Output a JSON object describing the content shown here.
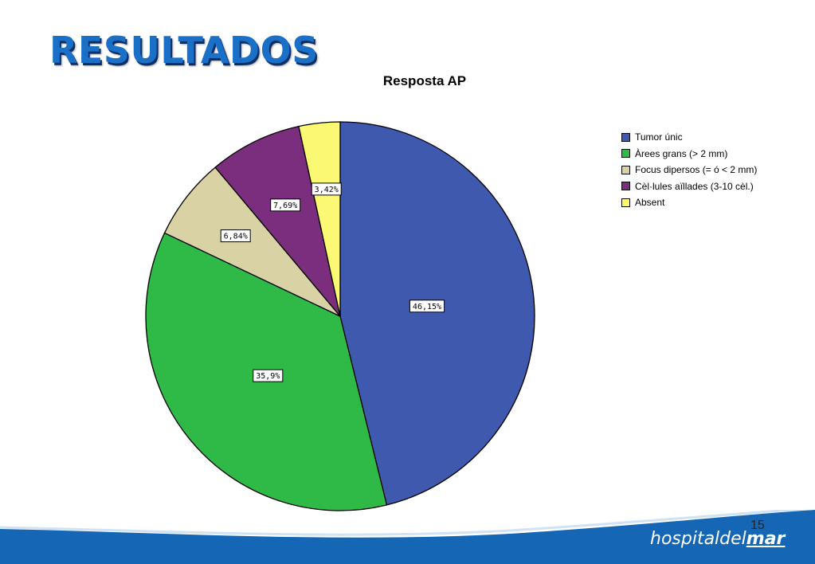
{
  "slide": {
    "title": "RESULTADOS",
    "page_number": "15",
    "logo_light": "hospitaldel",
    "logo_bold": "mar"
  },
  "colors": {
    "title": "#1a6fc7",
    "footer_wave": "#1566b5"
  },
  "chart_data": {
    "type": "pie",
    "title": "Resposta AP",
    "start_angle_deg": 0,
    "direction": "clockwise",
    "legend_position": "right",
    "slices": [
      {
        "label": "Tumor únic",
        "value": 46.15,
        "data_label": "46,15%",
        "color": "#3f59ae"
      },
      {
        "label": "Àrees grans (> 2 mm)",
        "value": 35.9,
        "data_label": "35,9%",
        "color": "#2fba48"
      },
      {
        "label": "Focus dipersos (= ó < 2 mm)",
        "value": 6.84,
        "data_label": "6,84%",
        "color": "#d9d2a4"
      },
      {
        "label": "Cèl·lules aïllades (3-10 cèl.)",
        "value": 7.69,
        "data_label": "7,69%",
        "color": "#7b2d7e"
      },
      {
        "label": "Absent",
        "value": 3.42,
        "data_label": "3,42%",
        "color": "#fbf873"
      }
    ]
  }
}
